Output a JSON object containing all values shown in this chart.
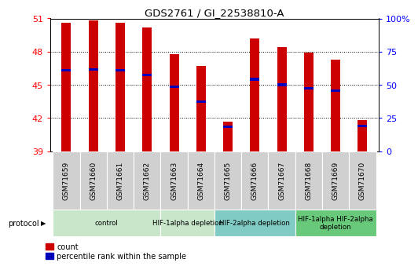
{
  "title": "GDS2761 / GI_22538810-A",
  "samples": [
    "GSM71659",
    "GSM71660",
    "GSM71661",
    "GSM71662",
    "GSM71663",
    "GSM71664",
    "GSM71665",
    "GSM71666",
    "GSM71667",
    "GSM71668",
    "GSM71669",
    "GSM71670"
  ],
  "red_bar_top": [
    50.6,
    50.8,
    50.6,
    50.2,
    47.8,
    46.7,
    41.7,
    49.2,
    48.4,
    47.9,
    47.3,
    41.8
  ],
  "blue_mark": [
    46.3,
    46.4,
    46.3,
    45.9,
    44.8,
    43.5,
    41.2,
    45.5,
    45.0,
    44.7,
    44.5,
    41.3
  ],
  "bar_bottom": 39.0,
  "ylim_left": [
    39,
    51
  ],
  "ylim_right": [
    0,
    100
  ],
  "yticks_left": [
    39,
    42,
    45,
    48,
    51
  ],
  "yticks_right": [
    0,
    25,
    50,
    75,
    100
  ],
  "ytick_right_labels": [
    "0",
    "25",
    "50",
    "75",
    "100%"
  ],
  "groups": [
    {
      "label": "control",
      "start": 0,
      "end": 3,
      "color": "#c8e6c9"
    },
    {
      "label": "HIF-1alpha depletion",
      "start": 4,
      "end": 5,
      "color": "#c8e6c9"
    },
    {
      "label": "HIF-2alpha depletion",
      "start": 6,
      "end": 8,
      "color": "#80cbc4"
    },
    {
      "label": "HIF-1alpha HIF-2alpha\ndepletion",
      "start": 9,
      "end": 11,
      "color": "#69c97a"
    }
  ],
  "red_color": "#cc0000",
  "blue_color": "#0000bb",
  "legend_red": "count",
  "legend_blue": "percentile rank within the sample",
  "protocol_label": "protocol",
  "bar_width": 0.35,
  "xtick_bg": "#d0d0d0"
}
